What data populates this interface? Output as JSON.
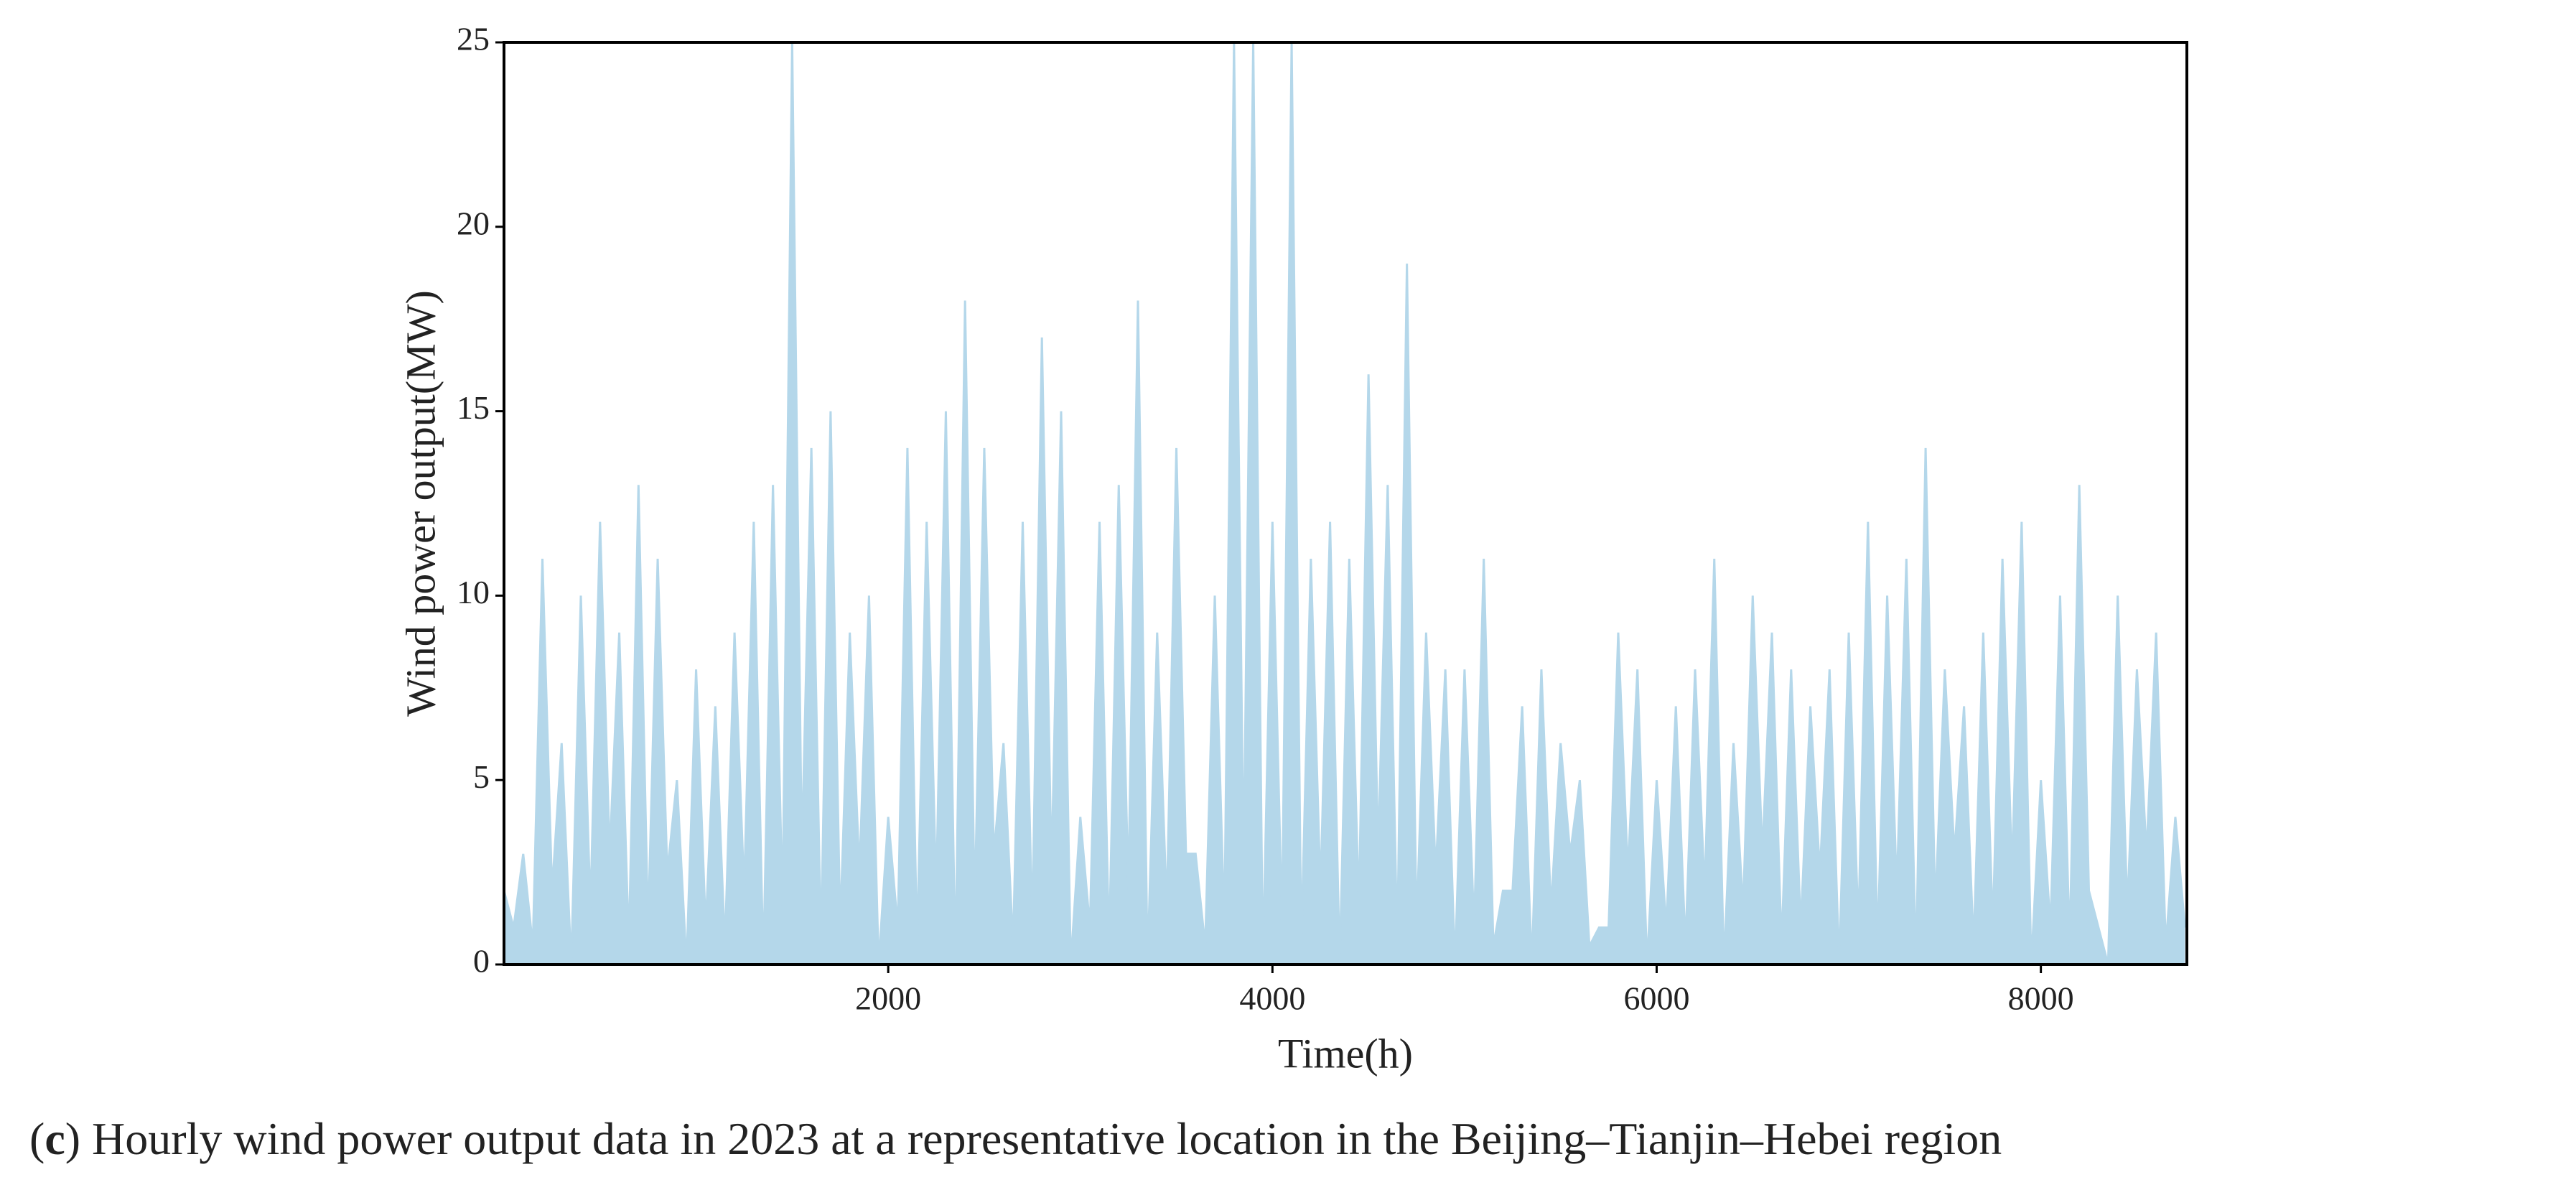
{
  "chart_data": {
    "type": "area",
    "x_label": "Time(h)",
    "y_label": "Wind power output(MW)",
    "caption": [
      "(",
      "c",
      ") Hourly wind power output data in 2023 at a representative location in the Beijing–Tianjin–Hebei region"
    ],
    "color": "#b4d7ea",
    "xlim": [
      0,
      8760
    ],
    "xticks": [
      2000,
      4000,
      6000,
      8000
    ],
    "ylim": [
      0,
      25
    ],
    "yticks": [
      0,
      5,
      10,
      15,
      20,
      25
    ],
    "x": [
      0,
      50,
      100,
      150,
      200,
      250,
      300,
      350,
      400,
      450,
      500,
      550,
      600,
      650,
      700,
      750,
      800,
      850,
      900,
      950,
      1000,
      1050,
      1100,
      1150,
      1200,
      1250,
      1300,
      1350,
      1400,
      1450,
      1500,
      1550,
      1600,
      1650,
      1700,
      1750,
      1800,
      1850,
      1900,
      1950,
      2000,
      2050,
      2100,
      2150,
      2200,
      2250,
      2300,
      2350,
      2400,
      2450,
      2500,
      2550,
      2600,
      2650,
      2700,
      2750,
      2800,
      2850,
      2900,
      2950,
      3000,
      3050,
      3100,
      3150,
      3200,
      3250,
      3300,
      3350,
      3400,
      3450,
      3500,
      3550,
      3600,
      3650,
      3700,
      3750,
      3800,
      3850,
      3900,
      3950,
      4000,
      4050,
      4100,
      4150,
      4200,
      4250,
      4300,
      4350,
      4400,
      4450,
      4500,
      4550,
      4600,
      4650,
      4700,
      4750,
      4800,
      4850,
      4900,
      4950,
      5000,
      5050,
      5100,
      5150,
      5200,
      5250,
      5300,
      5350,
      5400,
      5450,
      5500,
      5550,
      5600,
      5650,
      5700,
      5750,
      5800,
      5850,
      5900,
      5950,
      6000,
      6050,
      6100,
      6150,
      6200,
      6250,
      6300,
      6350,
      6400,
      6450,
      6500,
      6550,
      6600,
      6650,
      6700,
      6750,
      6800,
      6850,
      6900,
      6950,
      7000,
      7050,
      7100,
      7150,
      7200,
      7250,
      7300,
      7350,
      7400,
      7450,
      7500,
      7550,
      7600,
      7650,
      7700,
      7750,
      7800,
      7850,
      7900,
      7950,
      8000,
      8050,
      8100,
      8150,
      8200,
      8250,
      8300,
      8350,
      8400,
      8450,
      8500,
      8550,
      8600,
      8650,
      8700,
      8750
    ],
    "values": [
      2,
      1,
      3,
      0.5,
      11,
      2,
      6,
      0,
      10,
      1.5,
      12,
      3,
      9,
      0.5,
      13,
      1,
      11,
      2.5,
      5,
      0,
      8,
      1,
      7,
      0.5,
      9,
      2,
      12,
      0,
      13,
      1.5,
      25,
      3,
      14,
      0.5,
      15,
      1,
      9,
      2.5,
      10,
      0,
      4,
      1,
      14,
      0.5,
      12,
      2,
      15,
      0,
      18,
      1.5,
      14,
      3,
      6,
      0.5,
      12,
      1,
      17,
      2.5,
      15,
      0,
      4,
      1,
      12,
      0.5,
      13,
      2,
      18,
      0,
      9,
      1.5,
      14,
      3,
      3,
      0.5,
      10,
      1,
      25,
      2.5,
      25,
      0,
      12,
      1,
      25,
      0.5,
      11,
      2,
      12,
      0,
      11,
      1.5,
      16,
      3,
      13,
      0.5,
      19,
      1,
      9,
      2.5,
      8,
      0,
      8,
      1,
      11,
      0.5,
      2,
      2,
      7,
      0,
      8,
      1.5,
      6,
      3,
      5,
      0.5,
      1,
      1,
      9,
      2.5,
      8,
      0,
      5,
      1,
      7,
      0.5,
      8,
      2,
      11,
      0,
      6,
      1.5,
      10,
      3,
      9,
      0.5,
      8,
      1,
      7,
      2.5,
      8,
      0,
      9,
      1,
      12,
      0.5,
      10,
      2,
      11,
      0,
      14,
      1.5,
      8,
      3,
      7,
      0.5,
      9,
      1,
      11,
      2.5,
      12,
      0,
      5,
      1,
      10,
      0.5,
      13,
      2,
      1,
      0,
      10,
      1.5,
      8,
      3,
      9,
      0.5,
      4,
      1
    ]
  }
}
